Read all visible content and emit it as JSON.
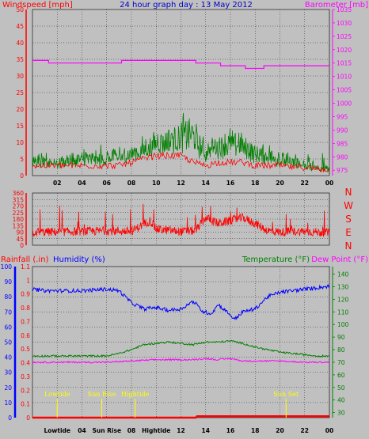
{
  "colors": {
    "background": "#c0c0c0",
    "wind": "#ff0000",
    "gust": "#008000",
    "barometer": "#ff00ff",
    "direction": "#ff0000",
    "humidity": "#0000ff",
    "temperature": "#008000",
    "dewpoint": "#ff00ff",
    "rainfall": "#ff0000",
    "event": "#ffff00",
    "title": "#0000cc"
  },
  "header": {
    "wind_label": "Windspeed [mph]",
    "title": "24 hour graph day : 13 May 2012",
    "baro_label": "Barometer [mb]"
  },
  "middle": {
    "directions": [
      "N",
      "W",
      "S",
      "E",
      "N"
    ]
  },
  "bottom": {
    "rain_label": "Rainfall (.in)",
    "humidity_label": "Humidity (%)",
    "temp_label": "Temperature (°F)",
    "dew_label": "Dew Point (°F)"
  },
  "time_ticks": [
    "02",
    "04",
    "06",
    "08",
    "10",
    "12",
    "14",
    "16",
    "18",
    "20",
    "22",
    "00"
  ],
  "bottom_time_ticks": [
    "Lowtide",
    "04",
    "Sun Rise",
    "08",
    "Hightide",
    "12",
    "14",
    "16",
    "18",
    "20",
    "22",
    "00"
  ],
  "events": [
    {
      "label": "Lowtide",
      "hour": 2.0
    },
    {
      "label": "Sun Rise",
      "hour": 5.6
    },
    {
      "label": "Hightide",
      "hour": 8.3
    },
    {
      "label": "Sun Set",
      "hour": 20.5
    }
  ],
  "chart_data": [
    {
      "type": "line",
      "x_range_hours": [
        0,
        24
      ],
      "y_left": {
        "ticks": [
          "0",
          "5",
          "10",
          "15",
          "20",
          "25",
          "30",
          "35",
          "40",
          "45",
          "50"
        ],
        "range": [
          0,
          50
        ]
      },
      "y_right": {
        "ticks": [
          "975",
          "980",
          "985",
          "990",
          "995",
          "1000",
          "1005",
          "1010",
          "1015",
          "1020",
          "1025",
          "1030",
          "1035"
        ],
        "range": [
          973,
          1035
        ]
      },
      "series": [
        {
          "name": "Windspeed",
          "axis": "left",
          "x": [
            0,
            2,
            4,
            6,
            7,
            8,
            9,
            10,
            11,
            12,
            13,
            14,
            15,
            16,
            17,
            18,
            19,
            20,
            21,
            22,
            23,
            24
          ],
          "values": [
            3,
            3,
            3,
            3,
            3,
            4,
            5,
            6,
            6,
            6,
            4,
            3,
            4,
            4,
            4,
            3,
            3,
            3,
            2.5,
            2.5,
            2,
            2
          ]
        },
        {
          "name": "Gust",
          "axis": "left",
          "x": [
            0,
            2,
            4,
            6,
            7,
            8,
            9,
            10,
            11,
            12,
            12.8,
            14,
            15,
            16,
            17,
            18,
            19,
            20,
            21,
            22,
            23,
            24
          ],
          "values": [
            5,
            5,
            6,
            6,
            7,
            8,
            10,
            12,
            13,
            14,
            15,
            9,
            11,
            12,
            11,
            8,
            7,
            6,
            5,
            4,
            3,
            3
          ]
        },
        {
          "name": "Barometer",
          "axis": "right",
          "x": [
            0,
            1.3,
            1.3,
            7.2,
            7.2,
            13.2,
            13.2,
            15.2,
            15.2,
            17.2,
            17.2,
            18.7,
            18.7,
            24
          ],
          "values": [
            1016,
            1016,
            1015,
            1015,
            1016,
            1016,
            1015,
            1015,
            1014,
            1014,
            1013,
            1013,
            1014,
            1014
          ]
        }
      ]
    },
    {
      "type": "line",
      "x_range_hours": [
        0,
        24
      ],
      "y_left": {
        "ticks": [
          "0",
          "45",
          "90",
          "135",
          "180",
          "225",
          "270",
          "315",
          "360"
        ],
        "range": [
          0,
          360
        ]
      },
      "series": [
        {
          "name": "Wind Direction",
          "x": [
            0,
            2,
            4,
            6,
            8,
            9.5,
            10,
            12,
            13.2,
            14,
            15,
            16,
            17,
            18,
            19,
            20,
            21,
            22,
            23,
            24
          ],
          "values": [
            90,
            92,
            95,
            100,
            95,
            170,
            110,
            95,
            100,
            190,
            150,
            170,
            190,
            150,
            100,
            90,
            95,
            95,
            90,
            85
          ]
        }
      ]
    },
    {
      "type": "line",
      "x_range_hours": [
        0,
        24
      ],
      "y_left": {
        "ticks": [
          "0",
          "10",
          "20",
          "30",
          "40",
          "50",
          "60",
          "70",
          "80",
          "90",
          "100"
        ],
        "range": [
          0,
          100
        ]
      },
      "y_left_inner": {
        "ticks": [
          "0",
          "0.1",
          "0.2",
          "0.3",
          "0.4",
          "0.5",
          "0.6",
          "0.7",
          "0.8",
          "0.9",
          "1",
          "1.1"
        ],
        "range": [
          0,
          1.1
        ]
      },
      "y_right": {
        "ticks": [
          "30",
          "40",
          "50",
          "60",
          "70",
          "80",
          "90",
          "100",
          "110",
          "120",
          "130",
          "140"
        ],
        "range": [
          26,
          146
        ]
      },
      "series": [
        {
          "name": "Humidity",
          "axis": "left",
          "x": [
            0,
            1,
            2,
            4,
            6,
            7,
            8,
            9,
            10,
            11,
            12,
            13,
            13.8,
            14.5,
            15,
            16,
            16.3,
            17,
            18,
            19,
            20,
            21,
            22,
            23,
            24
          ],
          "values": [
            85,
            84,
            84,
            84,
            85,
            84,
            76,
            72,
            73,
            71,
            72,
            77,
            70,
            69,
            75,
            68,
            65,
            70,
            72,
            80,
            83,
            84,
            85,
            86,
            87
          ]
        },
        {
          "name": "Temperature",
          "axis": "right",
          "x": [
            0,
            2,
            4,
            6,
            7,
            8,
            9,
            10,
            11,
            12,
            13,
            14,
            15,
            16,
            17,
            18,
            19,
            20,
            21,
            22,
            23,
            24
          ],
          "values": [
            75,
            75,
            75,
            75,
            77,
            80,
            84,
            85,
            86,
            85,
            84,
            86,
            86,
            87,
            85,
            82,
            80,
            78,
            77,
            76,
            75,
            75
          ]
        },
        {
          "name": "Dew Point",
          "axis": "right",
          "x": [
            0,
            2,
            4,
            6,
            8,
            10,
            12,
            13,
            14,
            15,
            16,
            17,
            18,
            20,
            22,
            24
          ],
          "values": [
            70,
            70,
            70,
            70,
            71,
            72,
            72,
            72,
            73,
            72,
            73,
            71,
            71,
            71,
            70,
            70
          ]
        },
        {
          "name": "Rainfall",
          "axis": "inner",
          "x": [
            0,
            13.2,
            13.3,
            24
          ],
          "values": [
            0,
            0,
            0.01,
            0.01
          ]
        }
      ]
    }
  ]
}
